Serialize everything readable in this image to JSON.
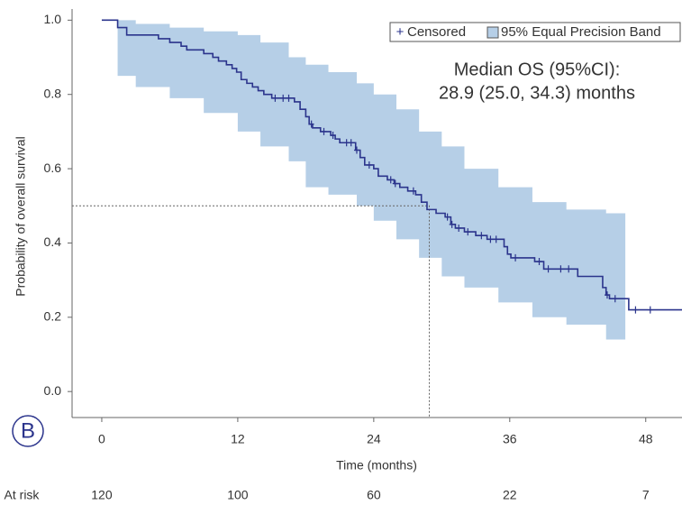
{
  "chart_data": {
    "type": "step",
    "panel_label": "B",
    "xlabel": "Time (months)",
    "ylabel": "Probability of overall survival",
    "xlim": [
      -2.62,
      51.2
    ],
    "ylim": [
      -0.07,
      1.03
    ],
    "xticks": [
      0,
      12,
      24,
      36,
      48
    ],
    "yticks": [
      {
        "value": 0,
        "label": "0.0"
      },
      0.2,
      0.4,
      0.6,
      0.8,
      {
        "value": 1,
        "label": "1.0"
      }
    ],
    "grid": false,
    "annotation": [
      "Median OS (95%CI):",
      "28.9 (25.0, 34.3) months"
    ],
    "median": {
      "x": 28.9,
      "y": 0.5
    },
    "curve": {
      "color": "#2b348c",
      "x": [
        0,
        1.4,
        2.2,
        5,
        6,
        7,
        7.5,
        9,
        9.8,
        10.3,
        11,
        11.5,
        11.9,
        12.3,
        12.8,
        13.3,
        13.8,
        14.3,
        15,
        17,
        17.5,
        18,
        18.3,
        18.6,
        19.3,
        20.2,
        20.6,
        21,
        22.4,
        22.8,
        23.2,
        24,
        24.4,
        25.2,
        25.8,
        26.3,
        27,
        27.7,
        28.2,
        28.7,
        29.5,
        30.3,
        30.8,
        31.2,
        32,
        33,
        34,
        35.5,
        35.8,
        36.1,
        38.2,
        39,
        42,
        44.2,
        44.5,
        44.8,
        46.5,
        51.2
      ],
      "values": [
        1.0,
        0.98,
        0.96,
        0.95,
        0.94,
        0.93,
        0.92,
        0.91,
        0.9,
        0.89,
        0.88,
        0.87,
        0.86,
        0.84,
        0.83,
        0.82,
        0.81,
        0.8,
        0.79,
        0.78,
        0.76,
        0.74,
        0.72,
        0.71,
        0.7,
        0.69,
        0.68,
        0.67,
        0.65,
        0.63,
        0.61,
        0.6,
        0.58,
        0.57,
        0.56,
        0.55,
        0.54,
        0.53,
        0.51,
        0.49,
        0.48,
        0.47,
        0.45,
        0.44,
        0.43,
        0.42,
        0.41,
        0.39,
        0.37,
        0.36,
        0.35,
        0.33,
        0.31,
        0.28,
        0.26,
        0.25,
        0.22,
        0.22
      ]
    },
    "censored": {
      "name": "Censored",
      "symbol": "+",
      "color": "#2b348c",
      "x": [
        15.3,
        16,
        16.5,
        18.5,
        19.6,
        20.4,
        21.6,
        22,
        22.5,
        23.6,
        25.5,
        25.9,
        27.5,
        30.5,
        30.9,
        31.5,
        32.3,
        33.5,
        34.3,
        34.8,
        36.5,
        38.6,
        39.4,
        40.5,
        41.2,
        44.6,
        45.3,
        47.1,
        48.4
      ],
      "values": [
        0.79,
        0.79,
        0.79,
        0.72,
        0.7,
        0.69,
        0.67,
        0.67,
        0.65,
        0.61,
        0.57,
        0.56,
        0.54,
        0.47,
        0.45,
        0.44,
        0.43,
        0.42,
        0.41,
        0.41,
        0.36,
        0.35,
        0.33,
        0.33,
        0.33,
        0.26,
        0.25,
        0.22,
        0.22
      ]
    },
    "band": {
      "name": "95% Equal Precision Band",
      "color": "#b6cfe7",
      "x": [
        1.4,
        3,
        6,
        9,
        12,
        14,
        16.5,
        18,
        20,
        22.5,
        24,
        26,
        28,
        30,
        32,
        35,
        38,
        41,
        44.5,
        46.2
      ],
      "upper": [
        1.0,
        0.99,
        0.98,
        0.97,
        0.96,
        0.94,
        0.9,
        0.88,
        0.86,
        0.83,
        0.8,
        0.76,
        0.7,
        0.66,
        0.6,
        0.55,
        0.51,
        0.49,
        0.48,
        0.43
      ],
      "lower": [
        0.85,
        0.82,
        0.79,
        0.75,
        0.7,
        0.66,
        0.62,
        0.55,
        0.53,
        0.5,
        0.46,
        0.41,
        0.36,
        0.31,
        0.28,
        0.24,
        0.2,
        0.18,
        0.14,
        0.08
      ]
    },
    "at_risk": {
      "label": "At risk",
      "values": [
        120,
        100,
        60,
        22,
        7
      ]
    }
  }
}
